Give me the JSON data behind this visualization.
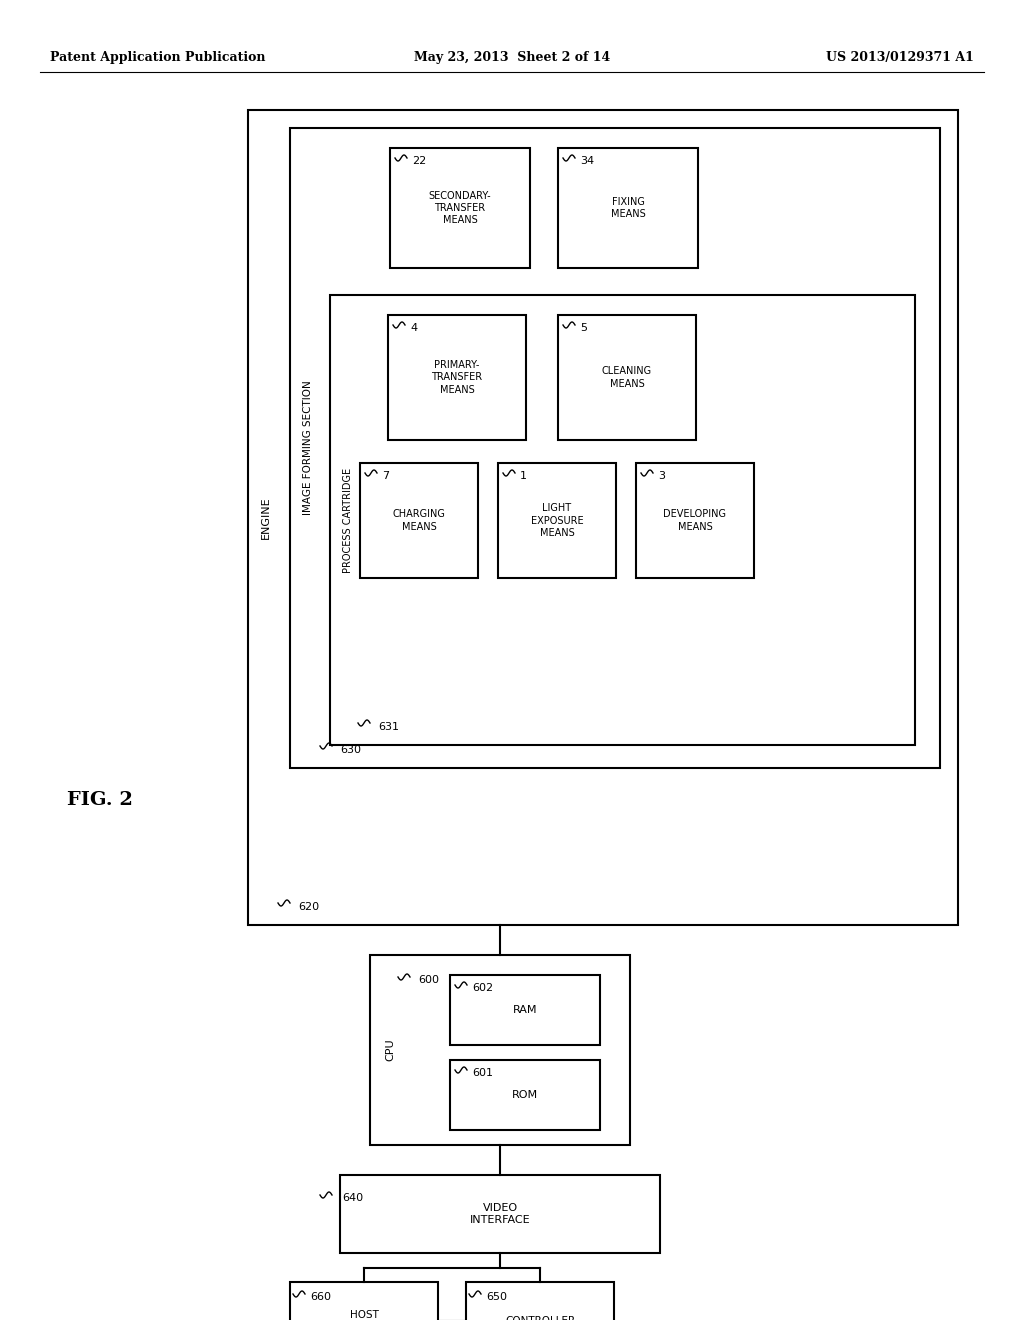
{
  "header_left": "Patent Application Publication",
  "header_center": "May 23, 2013  Sheet 2 of 14",
  "header_right": "US 2013/0129371 A1",
  "fig_label": "FIG. 2",
  "bg_color": "#ffffff",
  "line_color": "#000000"
}
